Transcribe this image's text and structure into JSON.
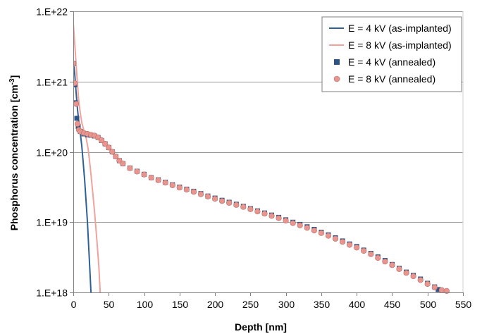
{
  "chart_data": {
    "type": "line",
    "title": "",
    "xlabel": "Depth [nm]",
    "ylabel": {
      "prefix": "Phosphorus concentration [cm",
      "sup": "-3",
      "suffix": "]"
    },
    "xlim": [
      0,
      550
    ],
    "ylim": [
      1e+18,
      1e+22
    ],
    "y_scale": "log",
    "x_ticks": [
      0,
      50,
      100,
      150,
      200,
      250,
      300,
      350,
      400,
      450,
      500,
      550
    ],
    "y_ticks": [
      {
        "value": 1e+18,
        "label": "1.E+18"
      },
      {
        "value": 1e+19,
        "label": "1.E+19"
      },
      {
        "value": 1e+20,
        "label": "1.E+20"
      },
      {
        "value": 1e+21,
        "label": "1.E+21"
      },
      {
        "value": 1e+22,
        "label": "1.E+22"
      }
    ],
    "grid": "horizontal",
    "legend_position": "top-right",
    "series": [
      {
        "name": "E = 4 kV (as-implanted)",
        "style": "line",
        "color": "#2e6096",
        "points": [
          [
            0,
            2e+21
          ],
          [
            2,
            1.3e+21
          ],
          [
            4,
            7e+20
          ],
          [
            6,
            4e+20
          ],
          [
            8,
            2.6e+20
          ],
          [
            10,
            1.8e+20
          ],
          [
            12,
            1.2e+20
          ],
          [
            14,
            7e+19
          ],
          [
            16,
            4e+19
          ],
          [
            18,
            2e+19
          ],
          [
            20,
            1e+19
          ],
          [
            22,
            4e+18
          ],
          [
            24,
            1.6e+18
          ],
          [
            25,
            1e+18
          ]
        ]
      },
      {
        "name": "E = 8 kV (as-implanted)",
        "style": "line",
        "color": "#f0a39c",
        "points": [
          [
            0,
            7e+21
          ],
          [
            2,
            3.5e+21
          ],
          [
            4,
            1.8e+21
          ],
          [
            6,
            9e+20
          ],
          [
            8,
            5e+20
          ],
          [
            10,
            3.5e+20
          ],
          [
            12,
            2.6e+20
          ],
          [
            15,
            2e+20
          ],
          [
            18,
            1.6e+20
          ],
          [
            21,
            1.1e+20
          ],
          [
            24,
            6e+19
          ],
          [
            27,
            3e+19
          ],
          [
            30,
            1.4e+19
          ],
          [
            33,
            6e+18
          ],
          [
            36,
            2.4e+18
          ],
          [
            38,
            1e+18
          ]
        ]
      },
      {
        "name": "E = 4 kV (annealed)",
        "style": "marker-square",
        "color": "#2e5484",
        "points": [
          [
            0,
            1.8e+21
          ],
          [
            2,
            9e+20
          ],
          [
            3,
            5e+20
          ],
          [
            5,
            3e+20
          ],
          [
            7,
            2.3e+20
          ],
          [
            10,
            1.95e+20
          ],
          [
            15,
            1.8e+20
          ],
          [
            20,
            1.75e+20
          ],
          [
            25,
            1.72e+20
          ],
          [
            30,
            1.68e+20
          ],
          [
            35,
            1.6e+20
          ],
          [
            40,
            1.45e+20
          ],
          [
            45,
            1.3e+20
          ],
          [
            50,
            1.15e+20
          ],
          [
            55,
            1e+20
          ],
          [
            60,
            8.6e+19
          ],
          [
            65,
            7.5e+19
          ],
          [
            70,
            6.8e+19
          ],
          [
            80,
            5.9e+19
          ],
          [
            90,
            5.3e+19
          ],
          [
            100,
            4.8e+19
          ],
          [
            110,
            4.3e+19
          ],
          [
            120,
            4e+19
          ],
          [
            130,
            3.7e+19
          ],
          [
            140,
            3.4e+19
          ],
          [
            150,
            3.15e+19
          ],
          [
            160,
            2.95e+19
          ],
          [
            170,
            2.75e+19
          ],
          [
            180,
            2.55e+19
          ],
          [
            190,
            2.35e+19
          ],
          [
            200,
            2.2e+19
          ],
          [
            210,
            2.05e+19
          ],
          [
            220,
            1.92e+19
          ],
          [
            230,
            1.8e+19
          ],
          [
            240,
            1.68e+19
          ],
          [
            250,
            1.56e+19
          ],
          [
            260,
            1.45e+19
          ],
          [
            270,
            1.35e+19
          ],
          [
            280,
            1.26e+19
          ],
          [
            290,
            1.17e+19
          ],
          [
            300,
            1.08e+19
          ],
          [
            310,
            1e+19
          ],
          [
            320,
            9.3e+18
          ],
          [
            330,
            8.6e+18
          ],
          [
            340,
            7.9e+18
          ],
          [
            350,
            7.2e+18
          ],
          [
            360,
            6.6e+18
          ],
          [
            370,
            6e+18
          ],
          [
            380,
            5.4e+18
          ],
          [
            390,
            4.9e+18
          ],
          [
            400,
            4.5e+18
          ],
          [
            410,
            4e+18
          ],
          [
            420,
            3.6e+18
          ],
          [
            430,
            3.2e+18
          ],
          [
            440,
            2.85e+18
          ],
          [
            450,
            2.5e+18
          ],
          [
            460,
            2.2e+18
          ],
          [
            470,
            1.95e+18
          ],
          [
            480,
            1.75e+18
          ],
          [
            490,
            1.55e+18
          ],
          [
            500,
            1.35e+18
          ],
          [
            510,
            1.2e+18
          ],
          [
            515,
            1.1e+18
          ]
        ]
      },
      {
        "name": "E = 8 kV (annealed)",
        "style": "marker-circle",
        "color": "#e8958f",
        "points": [
          [
            0,
            1.8e+21
          ],
          [
            2,
            9.5e+20
          ],
          [
            4,
            4.8e+20
          ],
          [
            6,
            2.5e+20
          ],
          [
            8,
            2.05e+20
          ],
          [
            10,
            1.95e+20
          ],
          [
            15,
            1.85e+20
          ],
          [
            20,
            1.8e+20
          ],
          [
            25,
            1.75e+20
          ],
          [
            30,
            1.7e+20
          ],
          [
            35,
            1.6e+20
          ],
          [
            40,
            1.46e+20
          ],
          [
            45,
            1.3e+20
          ],
          [
            50,
            1.15e+20
          ],
          [
            55,
            1e+20
          ],
          [
            60,
            8.6e+19
          ],
          [
            65,
            7.5e+19
          ],
          [
            70,
            6.8e+19
          ],
          [
            80,
            5.85e+19
          ],
          [
            90,
            5.25e+19
          ],
          [
            100,
            4.75e+19
          ],
          [
            110,
            4.3e+19
          ],
          [
            120,
            3.95e+19
          ],
          [
            130,
            3.65e+19
          ],
          [
            140,
            3.35e+19
          ],
          [
            150,
            3.1e+19
          ],
          [
            160,
            2.9e+19
          ],
          [
            170,
            2.7e+19
          ],
          [
            180,
            2.5e+19
          ],
          [
            190,
            2.32e+19
          ],
          [
            200,
            2.15e+19
          ],
          [
            210,
            2e+19
          ],
          [
            220,
            1.88e+19
          ],
          [
            230,
            1.76e+19
          ],
          [
            240,
            1.65e+19
          ],
          [
            250,
            1.53e+19
          ],
          [
            260,
            1.42e+19
          ],
          [
            270,
            1.32e+19
          ],
          [
            280,
            1.23e+19
          ],
          [
            290,
            1.14e+19
          ],
          [
            300,
            1.05e+19
          ],
          [
            310,
            9.7e+18
          ],
          [
            320,
            9e+18
          ],
          [
            330,
            8.3e+18
          ],
          [
            340,
            7.6e+18
          ],
          [
            350,
            7e+18
          ],
          [
            360,
            6.4e+18
          ],
          [
            370,
            5.8e+18
          ],
          [
            380,
            5.25e+18
          ],
          [
            390,
            4.75e+18
          ],
          [
            400,
            4.35e+18
          ],
          [
            410,
            3.9e+18
          ],
          [
            420,
            3.5e+18
          ],
          [
            430,
            3.1e+18
          ],
          [
            440,
            2.75e+18
          ],
          [
            450,
            2.45e+18
          ],
          [
            460,
            2.15e+18
          ],
          [
            470,
            1.9e+18
          ],
          [
            480,
            1.7e+18
          ],
          [
            490,
            1.5e+18
          ],
          [
            500,
            1.32e+18
          ],
          [
            510,
            1.18e+18
          ],
          [
            520,
            1.08e+18
          ],
          [
            527,
            1.05e+18
          ]
        ]
      }
    ]
  }
}
